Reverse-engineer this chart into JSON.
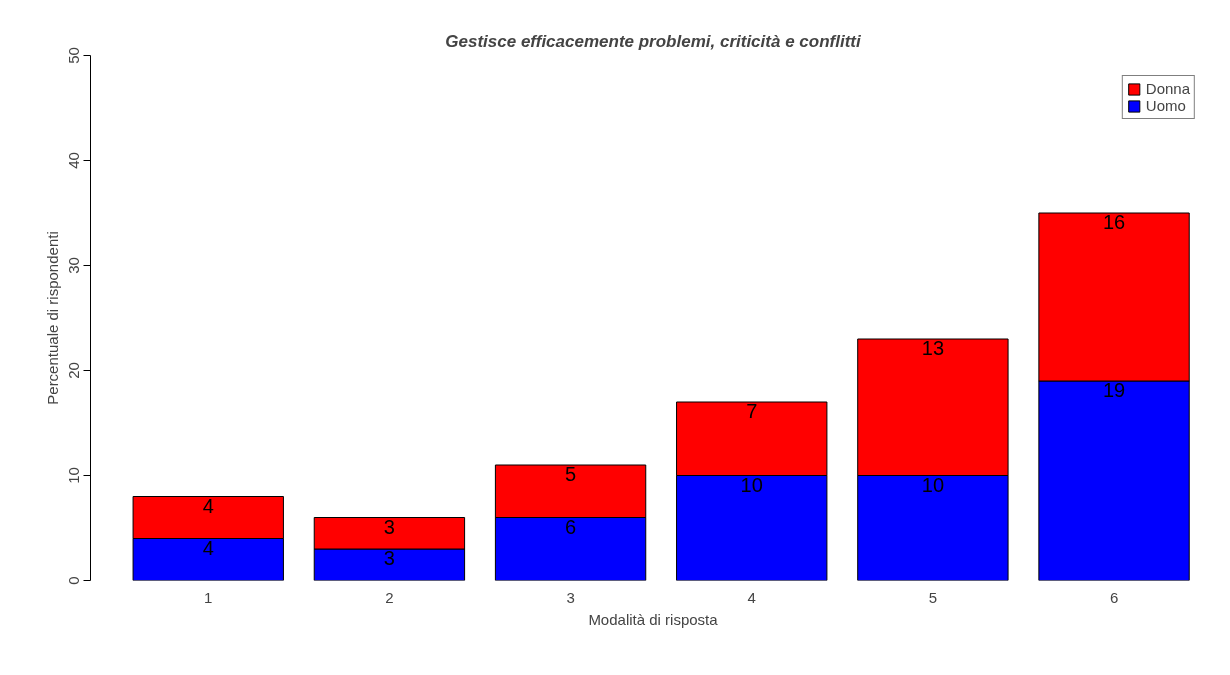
{
  "chart_data": {
    "type": "bar",
    "title": "Gestisce efficacemente problemi, criticità e conflitti",
    "xlabel": "Modalità di risposta",
    "ylabel": "Percentuale di rispondenti",
    "categories": [
      "1",
      "2",
      "3",
      "4",
      "5",
      "6"
    ],
    "stacked": true,
    "series": [
      {
        "name": "Uomo",
        "color": "#0000ff",
        "values": [
          4,
          3,
          6,
          10,
          10,
          19
        ]
      },
      {
        "name": "Donna",
        "color": "#ff0000",
        "values": [
          4,
          3,
          5,
          7,
          13,
          16
        ]
      }
    ],
    "ylim": [
      0,
      50
    ],
    "yticks": [
      0,
      10,
      20,
      30,
      40,
      50
    ],
    "data_labels": true,
    "legend": "top right",
    "grid": false
  }
}
